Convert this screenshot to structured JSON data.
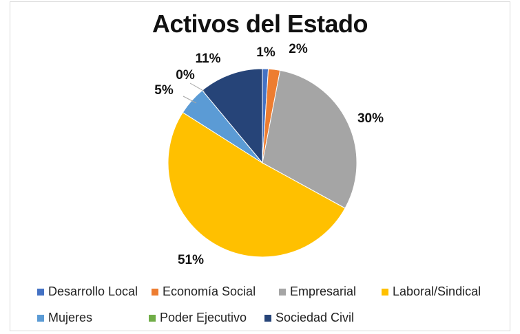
{
  "chart_data": {
    "type": "pie",
    "title": "Activos del Estado",
    "slices": [
      {
        "name": "Desarrollo Local",
        "value": 1,
        "label": "1%",
        "color": "#4472C4"
      },
      {
        "name": "Economía Social",
        "value": 2,
        "label": "2%",
        "color": "#ED7D31"
      },
      {
        "name": "Empresarial",
        "value": 30,
        "label": "30%",
        "color": "#A5A5A5"
      },
      {
        "name": "Laboral/Sindical",
        "value": 51,
        "label": "51%",
        "color": "#FFC000"
      },
      {
        "name": "Mujeres",
        "value": 5,
        "label": "5%",
        "color": "#5B9BD5"
      },
      {
        "name": "Poder Ejecutivo",
        "value": 0,
        "label": "0%",
        "color": "#70AD47"
      },
      {
        "name": "Sociedad Civil",
        "value": 11,
        "label": "11%",
        "color": "#264478"
      }
    ],
    "legend_position": "bottom"
  }
}
